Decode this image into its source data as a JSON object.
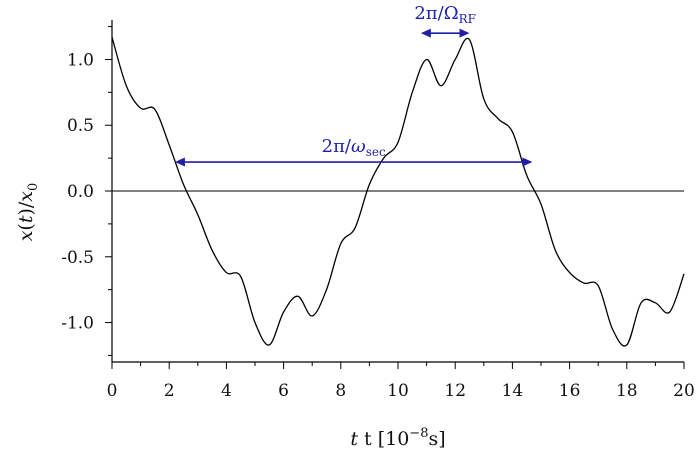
{
  "chart_data": {
    "type": "line",
    "xlabel": {
      "main": "t [10",
      "sup": "−8",
      "tail": "s]"
    },
    "ylabel": {
      "a": "x",
      "b": "(",
      "c": "t",
      "d": ")/",
      "e": "x",
      "sub": "0"
    },
    "xlim": [
      0,
      20
    ],
    "ylim": [
      -1.3,
      1.3
    ],
    "x_ticks": [
      0,
      2,
      4,
      6,
      8,
      10,
      12,
      14,
      16,
      18,
      20
    ],
    "y_ticks": [
      -1.0,
      -0.5,
      0.0,
      0.5,
      1.0
    ],
    "x_tick_labels": [
      "0",
      "2",
      "4",
      "6",
      "8",
      "10",
      "12",
      "14",
      "16",
      "18",
      "20"
    ],
    "y_tick_labels": [
      "-1.0",
      "-0.5",
      "0.0",
      "0.5",
      "1.0"
    ],
    "zero_line": true,
    "grid": false,
    "series": [
      {
        "x": [
          0,
          0.5,
          1.0,
          1.5,
          2.0,
          2.5,
          3.0,
          3.5,
          4.0,
          4.5,
          5.0,
          5.5,
          6.0,
          6.5,
          7.0,
          7.5,
          8.0,
          8.5,
          9.0,
          9.5,
          10.0,
          10.5,
          11.0,
          11.5,
          12.0,
          12.5,
          13.0,
          13.5,
          14.0,
          14.5,
          15.0,
          15.5,
          16.0,
          16.5,
          17.0,
          17.5,
          18.0,
          18.5,
          19.0,
          19.5,
          20.0
        ],
        "y": [
          1.17,
          0.8,
          0.63,
          0.62,
          0.35,
          0.05,
          -0.18,
          -0.45,
          -0.62,
          -0.65,
          -1.0,
          -1.17,
          -0.92,
          -0.8,
          -0.95,
          -0.75,
          -0.4,
          -0.28,
          0.05,
          0.25,
          0.37,
          0.75,
          1.0,
          0.8,
          1.0,
          1.15,
          0.7,
          0.55,
          0.45,
          0.12,
          -0.1,
          -0.45,
          -0.62,
          -0.7,
          -0.72,
          -1.05,
          -1.17,
          -0.85,
          -0.85,
          -0.92,
          -0.63
        ],
        "color": "#000000"
      }
    ],
    "annotations": [
      {
        "x_start": 2.2,
        "x_end": 14.7,
        "y": 0.22,
        "label_pre": "2π/",
        "label_sym": "ω",
        "label_sub": "sec",
        "color": "#1f1fa8"
      },
      {
        "x_start": 10.8,
        "x_end": 12.5,
        "y": 1.2,
        "label_pre": "2π/Ω",
        "label_sym": "",
        "label_sub": "RF",
        "color": "#1f1fa8"
      }
    ]
  }
}
